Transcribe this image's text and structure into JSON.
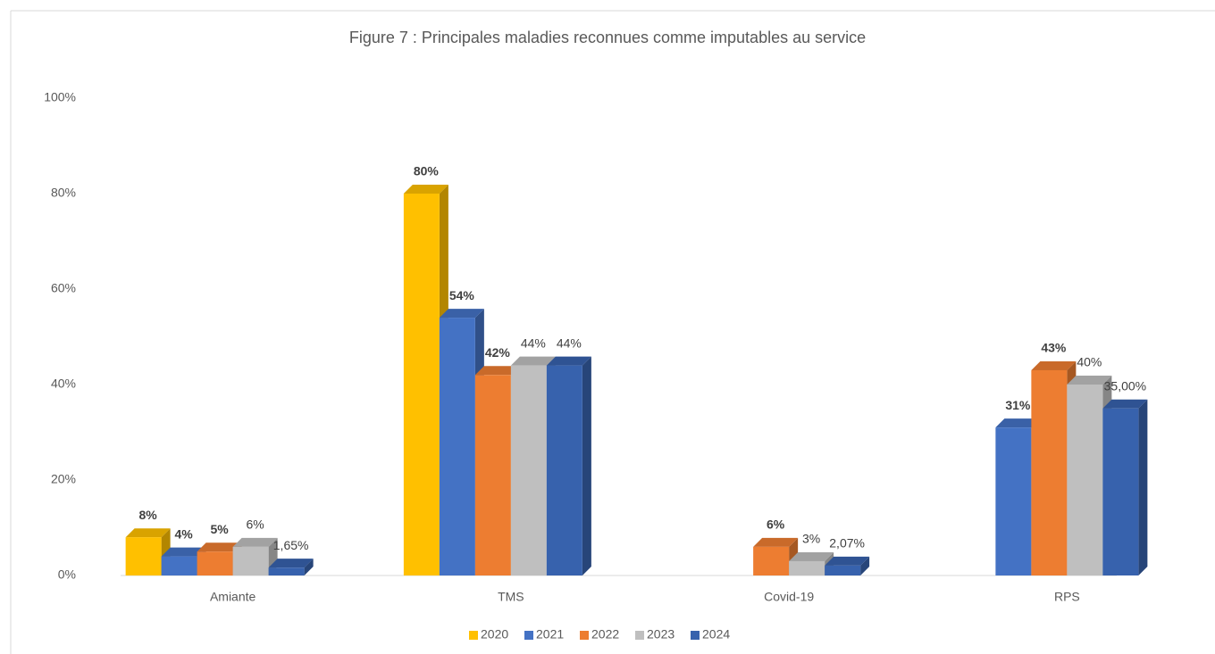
{
  "chart_data": {
    "type": "bar3d",
    "title": "Figure 7 : Principales maladies reconnues comme imputables au service",
    "categories": [
      "Amiante",
      "TMS",
      "Covid-19",
      "RPS"
    ],
    "series": [
      {
        "name": "2020",
        "color": "#ffc000",
        "values": [
          8,
          80,
          null,
          null
        ],
        "value_labels": [
          "8%",
          "80%",
          null,
          null
        ]
      },
      {
        "name": "2021",
        "color": "#4472c4",
        "values": [
          4,
          54,
          null,
          31
        ],
        "value_labels": [
          "4%",
          "54%",
          null,
          "31%"
        ]
      },
      {
        "name": "2022",
        "color": "#ed7d31",
        "values": [
          5,
          42,
          6,
          43
        ],
        "value_labels": [
          "5%",
          "42%",
          "6%",
          "43%"
        ]
      },
      {
        "name": "2023",
        "color": "#bfbfbf",
        "values": [
          6,
          44,
          3,
          40
        ],
        "value_labels": [
          "6%",
          "44%",
          "3%",
          "40%"
        ]
      },
      {
        "name": "2024",
        "color": "#3762ad",
        "values": [
          1.65,
          44,
          2.07,
          35
        ],
        "value_labels": [
          "1,65%",
          "44%",
          "2,07%",
          "35,00%"
        ]
      }
    ],
    "ylim": [
      0,
      100
    ],
    "yticks": [
      {
        "value": 0,
        "label": "0%"
      },
      {
        "value": 20,
        "label": "20%"
      },
      {
        "value": 40,
        "label": "40%"
      },
      {
        "value": 60,
        "label": "60%"
      },
      {
        "value": 80,
        "label": "80%"
      },
      {
        "value": 100,
        "label": "100%"
      }
    ],
    "legend": "bottom"
  }
}
